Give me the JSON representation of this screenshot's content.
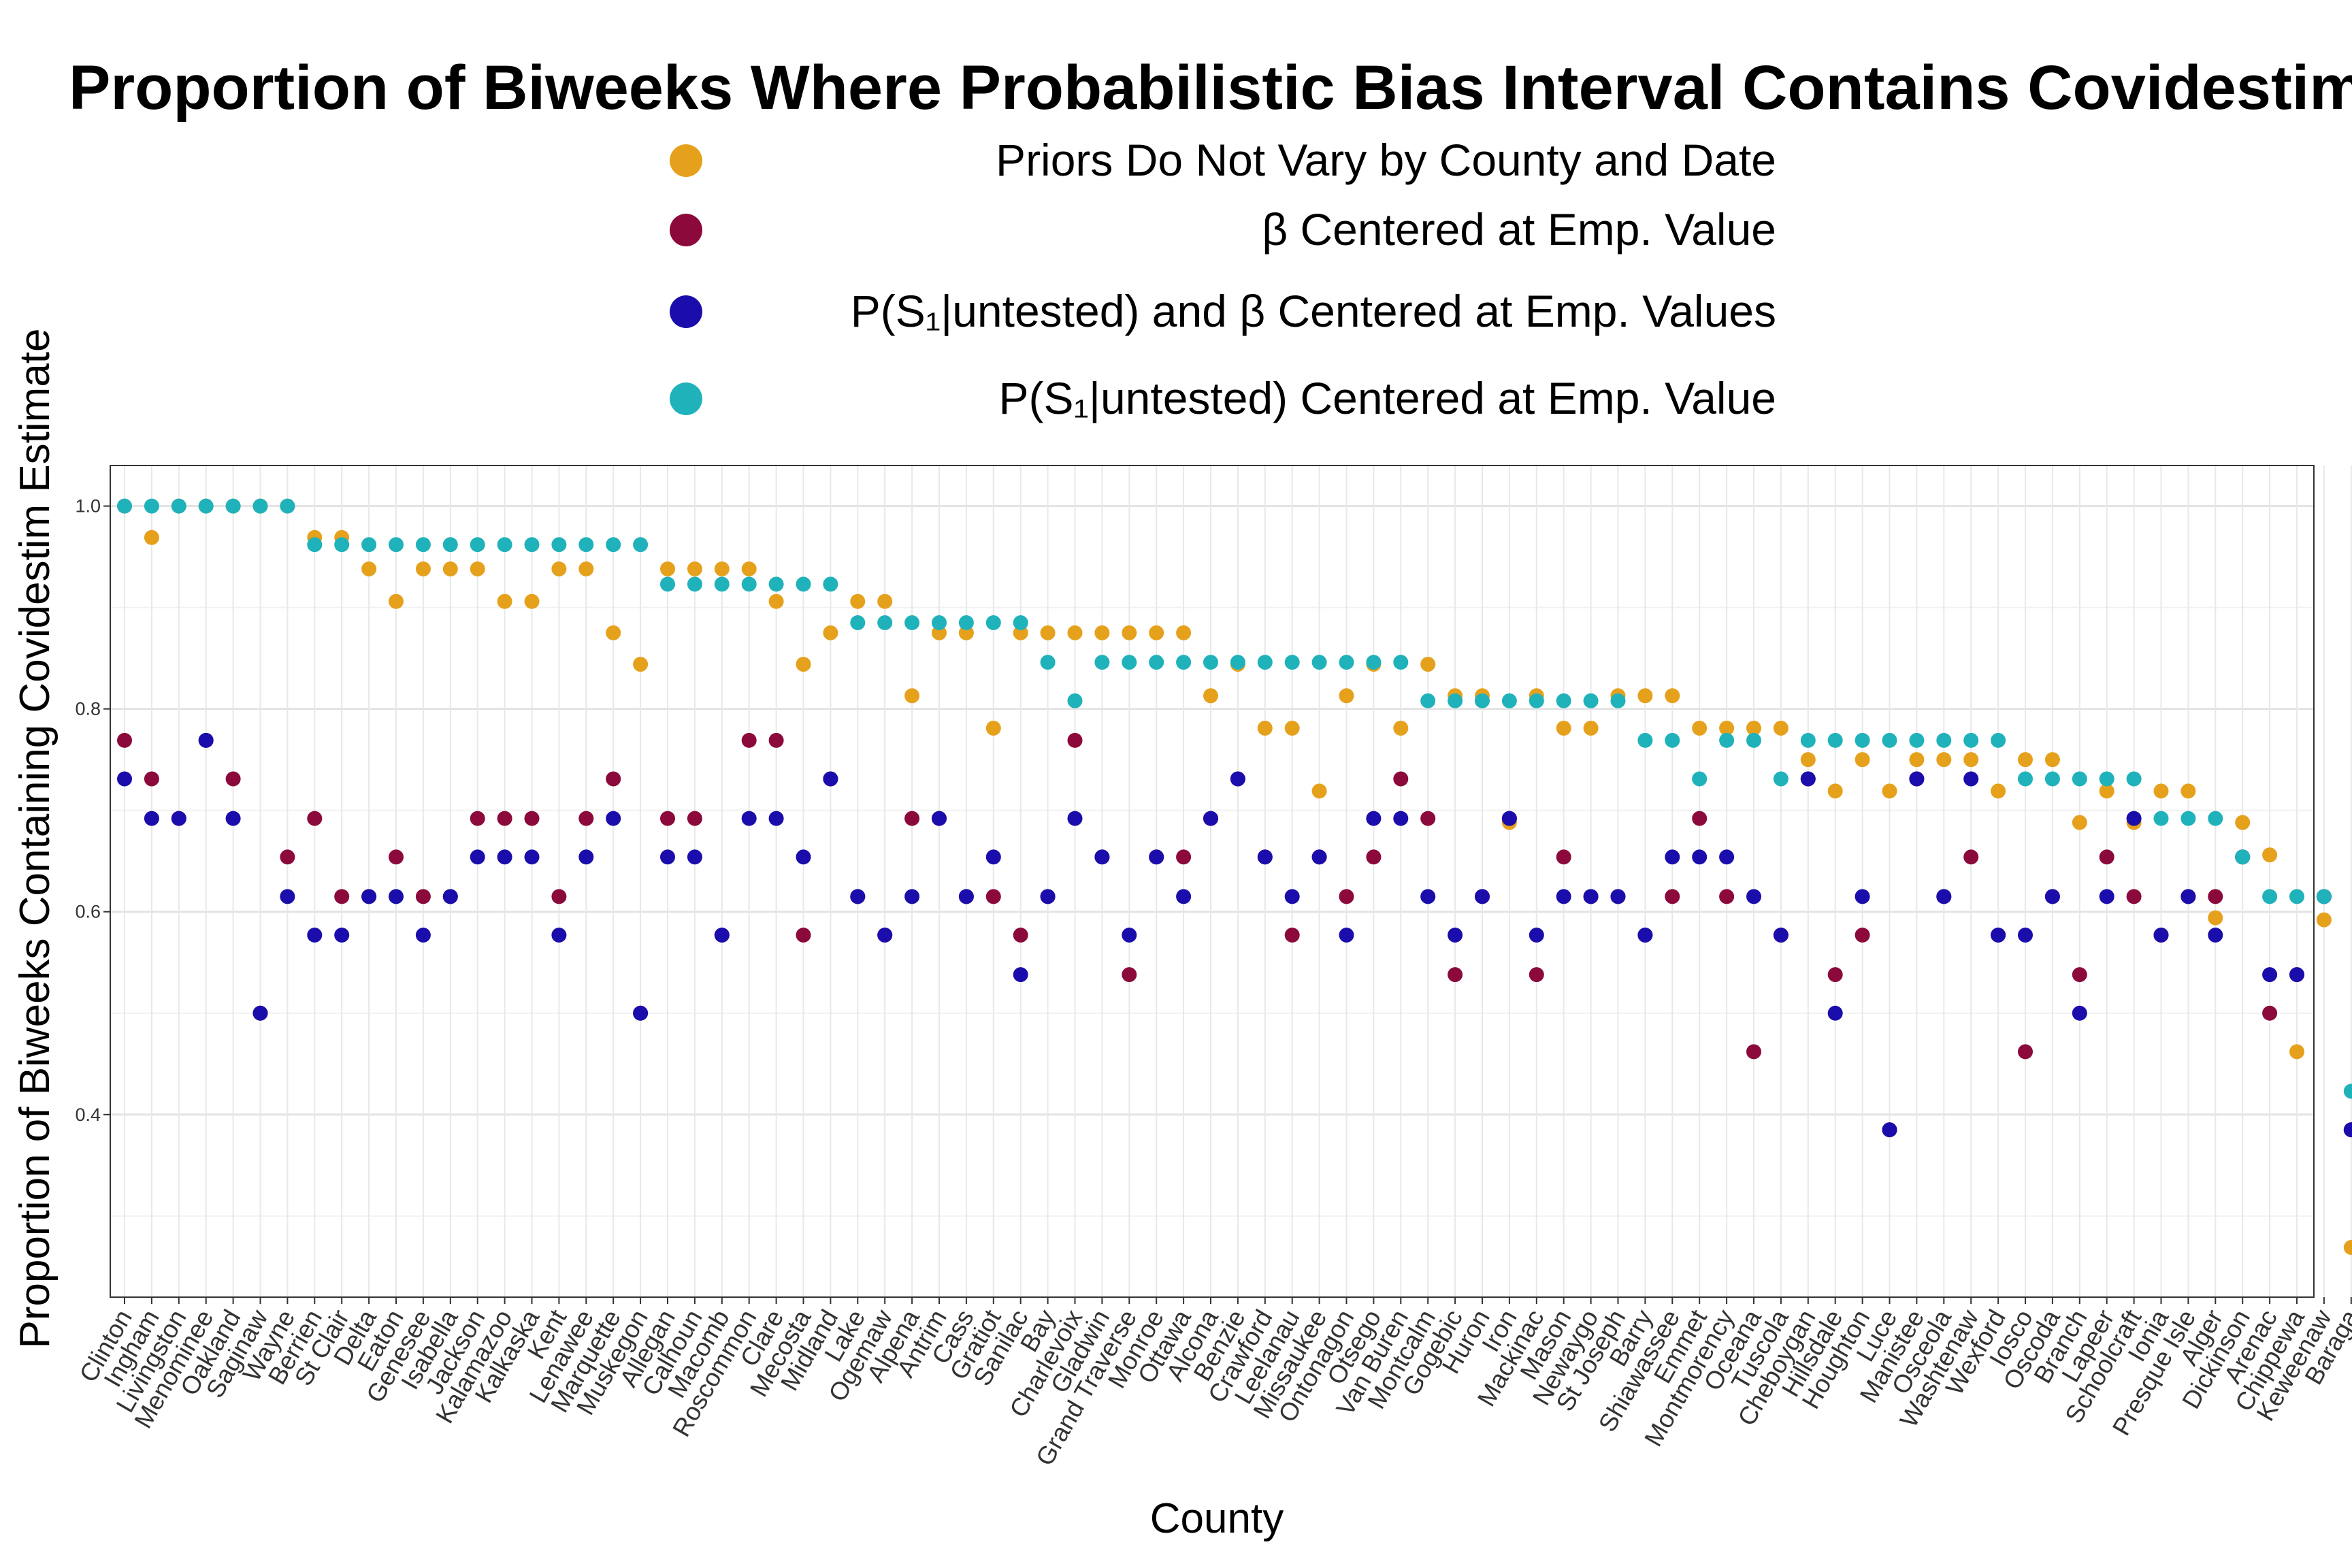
{
  "chart_data": {
    "type": "scatter",
    "title": "Proportion of Biweeks Where Probabilistic Bias Interval Contains Covidestim",
    "xlabel": "County",
    "ylabel": "Proportion of Biweeks Containing Covidestim Estimate",
    "ylim": [
      0.22,
      1.04
    ],
    "yticks": [
      0.4,
      0.6,
      0.8,
      1.0
    ],
    "ytick_labels": [
      "0.4",
      "0.6",
      "0.8",
      "1.0"
    ],
    "grid": true,
    "legend_position": "top",
    "categories": [
      "Clinton",
      "Ingham",
      "Livingston",
      "Menominee",
      "Oakland",
      "Saginaw",
      "Wayne",
      "Berrien",
      "St Clair",
      "Delta",
      "Eaton",
      "Genesee",
      "Isabella",
      "Jackson",
      "Kalamazoo",
      "Kalkaska",
      "Kent",
      "Lenawee",
      "Marquette",
      "Muskegon",
      "Allegan",
      "Calhoun",
      "Macomb",
      "Roscommon",
      "Clare",
      "Mecosta",
      "Midland",
      "Lake",
      "Ogemaw",
      "Alpena",
      "Antrim",
      "Cass",
      "Gratiot",
      "Sanilac",
      "Bay",
      "Charlevoix",
      "Gladwin",
      "Grand Traverse",
      "Monroe",
      "Ottawa",
      "Alcona",
      "Benzie",
      "Crawford",
      "Leelanau",
      "Missaukee",
      "Ontonagon",
      "Otsego",
      "Van Buren",
      "Montcalm",
      "Gogebic",
      "Huron",
      "Iron",
      "Mackinac",
      "Mason",
      "Newaygo",
      "St Joseph",
      "Barry",
      "Shiawassee",
      "Emmet",
      "Montmorency",
      "Oceana",
      "Tuscola",
      "Cheboygan",
      "Hillsdale",
      "Houghton",
      "Luce",
      "Manistee",
      "Osceola",
      "Washtenaw",
      "Wexford",
      "Iosco",
      "Oscoda",
      "Branch",
      "Lapeer",
      "Schoolcraft",
      "Ionia",
      "Presque Isle",
      "Alger",
      "Dickinson",
      "Arenac",
      "Chippewa",
      "Keweenaw",
      "Baraga"
    ],
    "series": [
      {
        "name": "Priors Do Not Vary by County and Date",
        "color": "#E6A11C",
        "values": [
          1.0,
          0.969,
          1.0,
          1.0,
          1.0,
          1.0,
          1.0,
          0.969,
          0.969,
          0.938,
          0.906,
          0.938,
          0.938,
          0.938,
          0.906,
          0.906,
          0.938,
          0.938,
          0.875,
          0.844,
          0.938,
          0.938,
          0.938,
          0.938,
          0.906,
          0.844,
          0.875,
          0.906,
          0.906,
          0.813,
          0.875,
          0.875,
          0.781,
          0.875,
          0.875,
          0.875,
          0.875,
          0.875,
          0.875,
          0.875,
          0.813,
          0.844,
          0.781,
          0.781,
          0.719,
          0.813,
          0.844,
          0.781,
          0.844,
          0.813,
          0.813,
          0.688,
          0.813,
          0.781,
          0.781,
          0.813,
          0.813,
          0.813,
          0.781,
          0.781,
          0.781,
          0.781,
          0.75,
          0.719,
          0.75,
          0.719,
          0.75,
          0.75,
          0.75,
          0.719,
          0.75,
          0.75,
          0.688,
          0.719,
          0.688,
          0.719,
          0.719,
          0.594,
          0.688,
          0.656,
          0.462,
          0.592,
          0.269
        ]
      },
      {
        "name": "β Centered at Emp. Value",
        "color": "#8B0A3B",
        "values": [
          0.769,
          0.731,
          0.692,
          0.769,
          0.731,
          0.5,
          0.654,
          0.692,
          0.615,
          0.615,
          0.654,
          0.615,
          0.615,
          0.692,
          0.692,
          0.692,
          0.615,
          0.692,
          0.731,
          0.5,
          0.692,
          0.692,
          0.577,
          0.769,
          0.769,
          0.577,
          0.731,
          0.615,
          0.577,
          0.692,
          0.692,
          0.615,
          0.615,
          0.577,
          0.615,
          0.769,
          0.654,
          0.538,
          0.654,
          0.654,
          0.692,
          0.731,
          0.654,
          0.577,
          0.654,
          0.615,
          0.654,
          0.731,
          0.692,
          0.538,
          0.615,
          0.692,
          0.538,
          0.654,
          0.615,
          0.615,
          0.577,
          0.615,
          0.692,
          0.615,
          0.462,
          0.577,
          0.731,
          0.538,
          0.577,
          0.385,
          0.731,
          0.615,
          0.654,
          0.577,
          0.462,
          0.615,
          0.538,
          0.654,
          0.615,
          0.577,
          0.615,
          0.615,
          0.654,
          0.5,
          0.538,
          0.615,
          0.385
        ]
      },
      {
        "name": "P(S₁|untested) and β Centered at Emp. Values",
        "color": "#1A0DAB",
        "values": [
          0.731,
          0.692,
          0.692,
          0.769,
          0.692,
          0.5,
          0.615,
          0.577,
          0.577,
          0.615,
          0.615,
          0.577,
          0.615,
          0.654,
          0.654,
          0.654,
          0.577,
          0.654,
          0.692,
          0.5,
          0.654,
          0.654,
          0.577,
          0.692,
          0.692,
          0.654,
          0.731,
          0.615,
          0.577,
          0.615,
          0.692,
          0.615,
          0.654,
          0.538,
          0.615,
          0.692,
          0.654,
          0.577,
          0.654,
          0.615,
          0.692,
          0.731,
          0.654,
          0.615,
          0.654,
          0.577,
          0.692,
          0.692,
          0.615,
          0.577,
          0.615,
          0.692,
          0.577,
          0.615,
          0.615,
          0.615,
          0.577,
          0.654,
          0.654,
          0.654,
          0.615,
          0.577,
          0.731,
          0.5,
          0.615,
          0.385,
          0.731,
          0.615,
          0.731,
          0.577,
          0.577,
          0.615,
          0.5,
          0.615,
          0.692,
          0.577,
          0.615,
          0.577,
          0.654,
          0.538,
          0.538,
          0.615,
          0.385
        ]
      },
      {
        "name": "P(S₁|untested) Centered at Emp. Value",
        "color": "#20B2BB",
        "values": [
          1.0,
          1.0,
          1.0,
          1.0,
          1.0,
          1.0,
          1.0,
          0.962,
          0.962,
          0.962,
          0.962,
          0.962,
          0.962,
          0.962,
          0.962,
          0.962,
          0.962,
          0.962,
          0.962,
          0.962,
          0.923,
          0.923,
          0.923,
          0.923,
          0.923,
          0.923,
          0.923,
          0.885,
          0.885,
          0.885,
          0.885,
          0.885,
          0.885,
          0.885,
          0.846,
          0.808,
          0.846,
          0.846,
          0.846,
          0.846,
          0.846,
          0.846,
          0.846,
          0.846,
          0.846,
          0.846,
          0.846,
          0.846,
          0.808,
          0.808,
          0.808,
          0.808,
          0.808,
          0.808,
          0.808,
          0.808,
          0.769,
          0.769,
          0.731,
          0.769,
          0.769,
          0.731,
          0.769,
          0.769,
          0.769,
          0.769,
          0.769,
          0.769,
          0.769,
          0.769,
          0.731,
          0.731,
          0.731,
          0.731,
          0.731,
          0.692,
          0.692,
          0.692,
          0.654,
          0.615,
          0.615,
          0.615,
          0.423
        ]
      }
    ]
  },
  "legend": [
    {
      "label": "Priors Do Not Vary by County and Date",
      "color": "#E6A11C"
    },
    {
      "label": "β Centered at Emp. Value",
      "color": "#8B0A3B"
    },
    {
      "label": "P(S₁|untested) and β Centered at Emp. Values",
      "color": "#1A0DAB"
    },
    {
      "label": "P(S₁|untested) Centered at Emp. Value",
      "color": "#20B2BB"
    }
  ]
}
